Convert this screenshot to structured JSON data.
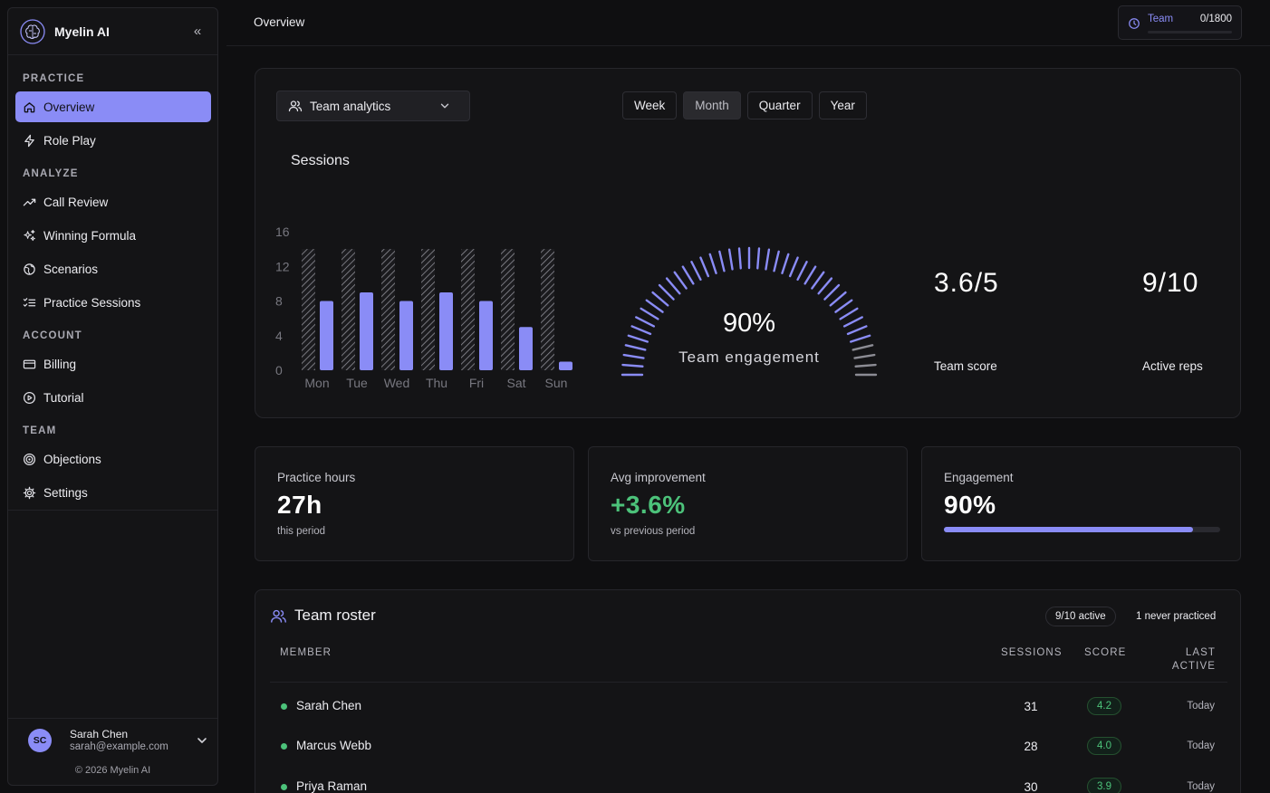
{
  "brand": {
    "name": "Myelin AI",
    "collapse_icon": "«"
  },
  "sidebar": {
    "sections": [
      {
        "label": "PRACTICE"
      },
      {
        "label": "ANALYZE"
      },
      {
        "label": "ACCOUNT"
      },
      {
        "label": "TEAM"
      }
    ],
    "items": [
      {
        "label": "Overview",
        "icon": "home-icon",
        "active": true
      },
      {
        "label": "Role Play",
        "icon": "bolt-icon"
      },
      {
        "label": "Call Review",
        "icon": "trend-icon"
      },
      {
        "label": "Winning Formula",
        "icon": "sparkles-icon"
      },
      {
        "label": "Scenarios",
        "icon": "globe-icon"
      },
      {
        "label": "Practice Sessions",
        "icon": "list-check-icon"
      },
      {
        "label": "Billing",
        "icon": "card-icon"
      },
      {
        "label": "Tutorial",
        "icon": "play-circle-icon"
      },
      {
        "label": "Objections",
        "icon": "target-icon"
      },
      {
        "label": "Settings",
        "icon": "gear-icon"
      }
    ],
    "user": {
      "initials": "SC",
      "name": "Sarah Chen",
      "email": "sarah@example.com"
    },
    "copyright": "© 2026 Myelin AI"
  },
  "topbar": {
    "title": "Overview",
    "credits": {
      "label": "Team",
      "value": "0/1800",
      "fraction": 0
    }
  },
  "main": {
    "dropdown_label": "Team analytics",
    "periods": [
      {
        "label": "Week",
        "selected": false
      },
      {
        "label": "Month",
        "selected": true
      },
      {
        "label": "Quarter",
        "selected": false
      },
      {
        "label": "Year",
        "selected": false
      }
    ],
    "sessions_title": "Sessions",
    "gauge": {
      "value_text": "90%",
      "label": "Team engagement",
      "fraction": 0.9
    },
    "team_score": {
      "value": "3.6/5",
      "label": "Team score"
    },
    "active_reps": {
      "value": "9/10",
      "label": "Active reps"
    }
  },
  "chart_data": {
    "type": "bar",
    "categories": [
      "Mon",
      "Tue",
      "Wed",
      "Thu",
      "Fri",
      "Sat",
      "Sun"
    ],
    "series": [
      {
        "values": [
          14,
          14,
          14,
          14,
          14,
          14,
          14
        ]
      },
      {
        "values": [
          8,
          9,
          8,
          9,
          8,
          5,
          1
        ]
      }
    ],
    "yticks": [
      0,
      4,
      8,
      12,
      16
    ],
    "ylim": [
      0,
      16
    ],
    "grid": false
  },
  "kpis": [
    {
      "title": "Practice hours",
      "value": "27h",
      "sub": "this period"
    },
    {
      "title": "Avg improvement",
      "value": "+3.6%",
      "sub": "vs previous period"
    },
    {
      "title": "Engagement",
      "value": "90%",
      "fraction": 0.9
    }
  ],
  "roster": {
    "title": "Team roster",
    "active_pill": "9/10 active",
    "never_pill": "1 never practiced",
    "columns": {
      "member": "MEMBER",
      "sessions": "SESSIONS",
      "score": "SCORE",
      "last_active_1": "LAST",
      "last_active_2": "ACTIVE"
    },
    "rows": [
      {
        "name": "Sarah Chen",
        "sessions": "31",
        "score": "4.2",
        "last": "Today"
      },
      {
        "name": "Marcus Webb",
        "sessions": "28",
        "score": "4.0",
        "last": "Today"
      },
      {
        "name": "Priya Raman",
        "sessions": "30",
        "score": "3.9",
        "last": "Today"
      }
    ]
  },
  "colors": {
    "accent": "#8a8cf6",
    "positive": "#4cc27a",
    "background": "#0f0f11",
    "card": "#141416"
  }
}
